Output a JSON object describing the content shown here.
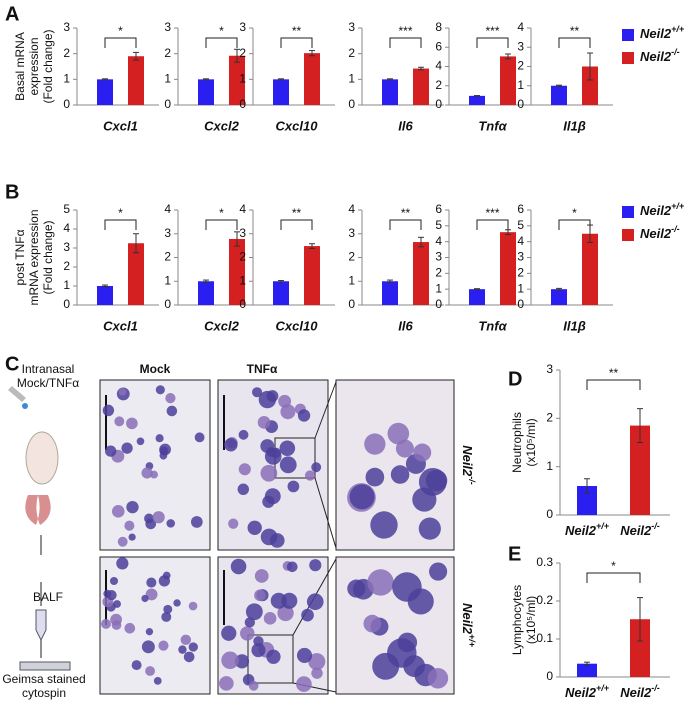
{
  "panel_labels": [
    "A",
    "B",
    "C",
    "D",
    "E"
  ],
  "legend": [
    {
      "name": "Neil2+/+",
      "color": "#2a1ff0"
    },
    {
      "name": "Neil2-/-",
      "color": "#d42020"
    }
  ],
  "panel_c": {
    "columns": [
      "Mock",
      "TNFα"
    ],
    "rows": [
      "Neil2-/-",
      "Neil2+/+"
    ],
    "steps": [
      "Intranasal",
      "Mock/TNFα",
      "BALF",
      "Geimsa stained",
      "cytospin"
    ]
  },
  "chart_data": [
    {
      "type": "bar",
      "ylabel": [
        "Basal mRNA",
        "expression",
        "(Fold change)"
      ],
      "xlabel": "Cxcl1",
      "values": [
        1.0,
        1.9
      ],
      "errors": [
        0.02,
        0.15
      ],
      "ylim": [
        0,
        3
      ],
      "yticks": [
        0,
        1,
        2,
        3
      ],
      "significance": "*"
    },
    {
      "type": "bar",
      "xlabel": "Cxcl2",
      "values": [
        1.0,
        1.92
      ],
      "errors": [
        0.02,
        0.25
      ],
      "ylim": [
        0,
        3
      ],
      "yticks": [
        0,
        1,
        2,
        3
      ],
      "significance": "*"
    },
    {
      "type": "bar",
      "xlabel": "Cxcl10",
      "values": [
        1.0,
        2.02
      ],
      "errors": [
        0.02,
        0.1
      ],
      "ylim": [
        0,
        3
      ],
      "yticks": [
        0,
        1,
        2,
        3
      ],
      "significance": "**"
    },
    {
      "type": "bar",
      "xlabel": "Il6",
      "values": [
        1.0,
        1.42
      ],
      "errors": [
        0.02,
        0.05
      ],
      "ylim": [
        0,
        3
      ],
      "yticks": [
        0,
        1,
        2,
        3
      ],
      "significance": "***"
    },
    {
      "type": "bar",
      "xlabel": "Tnfα",
      "values": [
        0.95,
        5.05
      ],
      "errors": [
        0.03,
        0.25
      ],
      "ylim": [
        0,
        8
      ],
      "yticks": [
        0,
        2,
        4,
        6,
        8
      ],
      "significance": "***"
    },
    {
      "type": "bar",
      "xlabel": "Il1β",
      "values": [
        1.0,
        2.0
      ],
      "errors": [
        0.03,
        0.7
      ],
      "ylim": [
        0,
        4
      ],
      "yticks": [
        0,
        1,
        2,
        3,
        4
      ],
      "significance": "**"
    },
    {
      "type": "bar",
      "ylabel": [
        "post TNFα",
        "mRNA expression",
        "(Fold change)"
      ],
      "xlabel": "Cxcl1",
      "values": [
        1.0,
        3.25
      ],
      "errors": [
        0.05,
        0.5
      ],
      "ylim": [
        0,
        5
      ],
      "yticks": [
        0,
        1,
        2,
        3,
        4,
        5
      ],
      "significance": "*"
    },
    {
      "type": "bar",
      "xlabel": "Cxcl2",
      "values": [
        1.0,
        2.78
      ],
      "errors": [
        0.05,
        0.3
      ],
      "ylim": [
        0,
        4
      ],
      "yticks": [
        0,
        1,
        2,
        3,
        4
      ],
      "significance": "*"
    },
    {
      "type": "bar",
      "xlabel": "Cxcl10",
      "values": [
        1.0,
        2.48
      ],
      "errors": [
        0.03,
        0.1
      ],
      "ylim": [
        0,
        4
      ],
      "yticks": [
        0,
        1,
        2,
        3,
        4
      ],
      "significance": "**"
    },
    {
      "type": "bar",
      "xlabel": "Il6",
      "values": [
        1.0,
        2.65
      ],
      "errors": [
        0.05,
        0.2
      ],
      "ylim": [
        0,
        4
      ],
      "yticks": [
        0,
        1,
        2,
        3,
        4
      ],
      "significance": "**"
    },
    {
      "type": "bar",
      "xlabel": "Tnfα",
      "values": [
        1.0,
        4.6
      ],
      "errors": [
        0.03,
        0.15
      ],
      "ylim": [
        0,
        6
      ],
      "yticks": [
        0,
        1,
        2,
        3,
        4,
        5,
        6
      ],
      "significance": "***"
    },
    {
      "type": "bar",
      "xlabel": "Il1β",
      "values": [
        1.0,
        4.5
      ],
      "errors": [
        0.05,
        0.55
      ],
      "ylim": [
        0,
        6
      ],
      "yticks": [
        0,
        1,
        2,
        3,
        4,
        5,
        6
      ],
      "significance": "*"
    },
    {
      "type": "bar",
      "ylabel": [
        "Neutrophils",
        "(x10⁵/ml)"
      ],
      "categories": [
        "Neil2+/+",
        "Neil2-/-"
      ],
      "values": [
        0.6,
        1.85
      ],
      "errors": [
        0.15,
        0.35
      ],
      "ylim": [
        0,
        3
      ],
      "yticks": [
        0,
        1,
        2,
        3
      ],
      "significance": "**"
    },
    {
      "type": "bar",
      "ylabel": [
        "Lymphocytes",
        "(x10⁵/ml)"
      ],
      "categories": [
        "Neil2+/+",
        "Neil2-/-"
      ],
      "values": [
        0.035,
        0.152
      ],
      "errors": [
        0.004,
        0.057
      ],
      "ylim": [
        0,
        0.3
      ],
      "yticks": [
        0,
        0.1,
        0.2,
        0.3
      ],
      "significance": "*"
    }
  ]
}
